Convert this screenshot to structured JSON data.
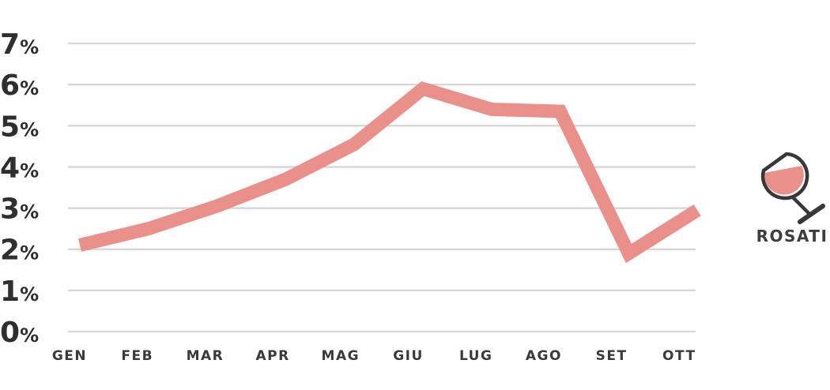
{
  "chart_data": {
    "type": "line",
    "title": "",
    "xlabel": "",
    "ylabel": "",
    "categories": [
      "GEN",
      "FEB",
      "MAR",
      "APR",
      "MAG",
      "GIU",
      "LUG",
      "AGO",
      "SET",
      "OTT"
    ],
    "series": [
      {
        "name": "ROSATI",
        "values": [
          2.1,
          2.5,
          3.05,
          3.7,
          4.55,
          5.9,
          5.4,
          5.35,
          1.9,
          2.95
        ]
      }
    ],
    "y_ticks": [
      "0%",
      "1%",
      "2%",
      "3%",
      "4%",
      "5%",
      "6%",
      "7%"
    ],
    "ylim": [
      0,
      7
    ],
    "y_unit": "%",
    "grid": "horizontal-only",
    "legend_position": "right"
  },
  "legend": {
    "label": "ROSATI",
    "icon": "wine-glass-icon"
  },
  "colors": {
    "line": "#E9908B",
    "wine_fill": "#E9908B",
    "grid": "#D8D8D8",
    "tick_text": "#2F2F2F",
    "month_text": "#3A3A3A",
    "legend_text": "#3E3E3E",
    "glass_stroke": "#383838",
    "background": "#FFFFFF"
  }
}
